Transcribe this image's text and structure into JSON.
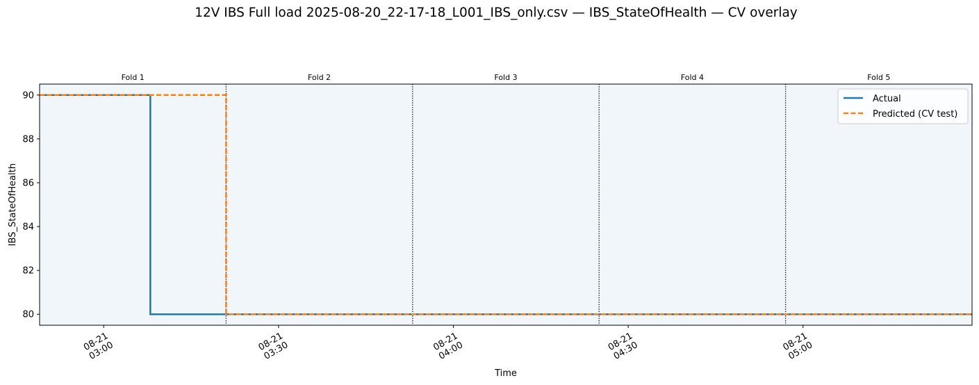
{
  "chart_data": {
    "type": "line",
    "title": "12V IBS Full load 2025-08-20_22-17-18_L001_IBS_only.csv — IBS_StateOfHealth — CV overlay",
    "xlabel": "Time",
    "ylabel": "IBS_StateOfHealth",
    "x_axis_type": "datetime",
    "xlim": [
      "2025-08-21 02:49",
      "2025-08-21 05:29"
    ],
    "ylim": [
      79.5,
      90.5
    ],
    "yticks": [
      80,
      82,
      84,
      86,
      88,
      90
    ],
    "xticks": [
      {
        "t": "2025-08-21 03:00",
        "date": "08-21",
        "time": "03:00"
      },
      {
        "t": "2025-08-21 03:30",
        "date": "08-21",
        "time": "03:30"
      },
      {
        "t": "2025-08-21 04:00",
        "date": "08-21",
        "time": "04:00"
      },
      {
        "t": "2025-08-21 04:30",
        "date": "08-21",
        "time": "04:30"
      },
      {
        "t": "2025-08-21 05:00",
        "date": "08-21",
        "time": "05:00"
      }
    ],
    "folds": [
      {
        "label": "Fold 1",
        "start": "2025-08-21 02:49",
        "end": "2025-08-21 03:21"
      },
      {
        "label": "Fold 2",
        "start": "2025-08-21 03:21",
        "end": "2025-08-21 03:53"
      },
      {
        "label": "Fold 3",
        "start": "2025-08-21 03:53",
        "end": "2025-08-21 04:25"
      },
      {
        "label": "Fold 4",
        "start": "2025-08-21 04:25",
        "end": "2025-08-21 04:57"
      },
      {
        "label": "Fold 5",
        "start": "2025-08-21 04:57",
        "end": "2025-08-21 05:29"
      }
    ],
    "series": [
      {
        "name": "Actual",
        "color": "#1f77b4",
        "style": "solid",
        "points": [
          {
            "t": "2025-08-21 02:49",
            "y": 90
          },
          {
            "t": "2025-08-21 03:08",
            "y": 90
          },
          {
            "t": "2025-08-21 03:08",
            "y": 80
          },
          {
            "t": "2025-08-21 05:29",
            "y": 80
          }
        ]
      },
      {
        "name": "Predicted (CV test)",
        "color": "#ff7f0e",
        "style": "dashed",
        "points": [
          {
            "t": "2025-08-21 02:49",
            "y": 90
          },
          {
            "t": "2025-08-21 03:21",
            "y": 90
          },
          {
            "t": "2025-08-21 03:21",
            "y": 80
          },
          {
            "t": "2025-08-21 05:29",
            "y": 80
          }
        ]
      }
    ],
    "legend_position": "top-right",
    "background_color": "#f0f6fa",
    "grid": false
  }
}
